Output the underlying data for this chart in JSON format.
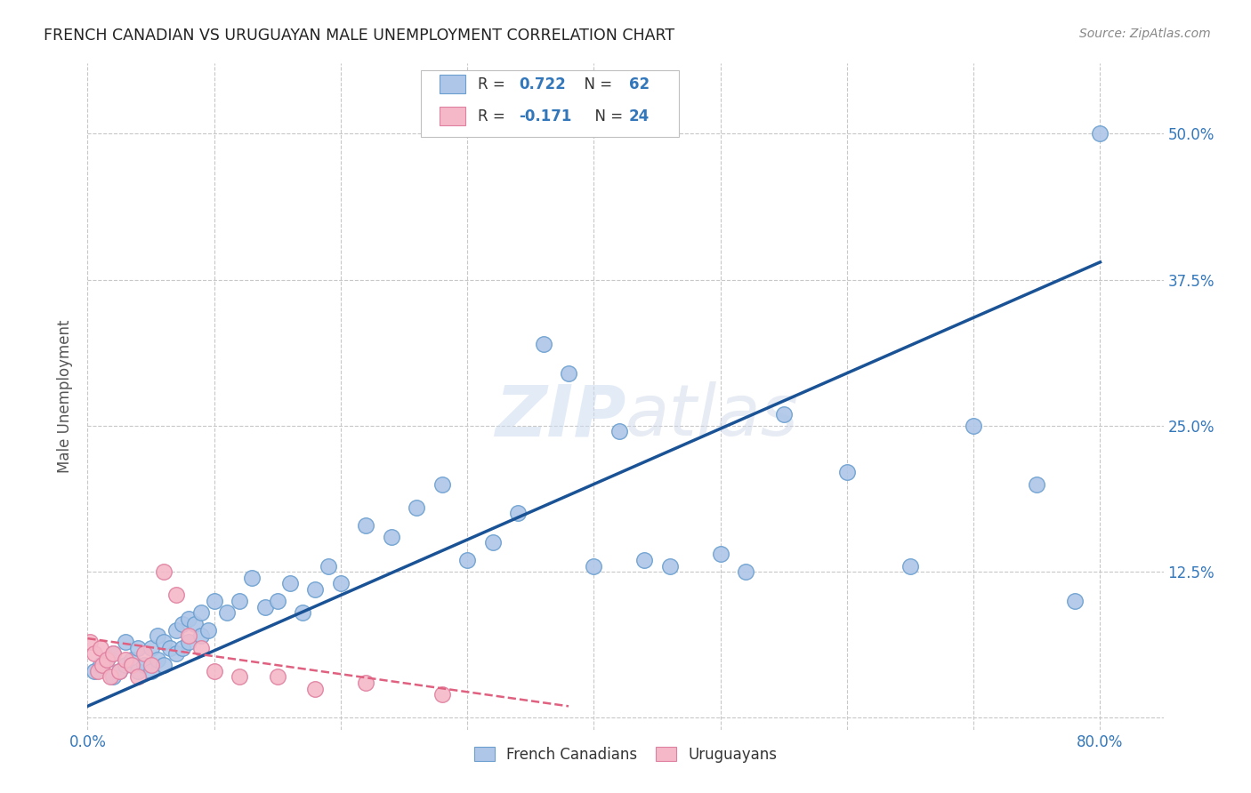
{
  "title": "FRENCH CANADIAN VS URUGUAYAN MALE UNEMPLOYMENT CORRELATION CHART",
  "source": "Source: ZipAtlas.com",
  "ylabel": "Male Unemployment",
  "xlim": [
    0.0,
    0.85
  ],
  "ylim": [
    -0.01,
    0.56
  ],
  "ytick_positions": [
    0.0,
    0.125,
    0.25,
    0.375,
    0.5
  ],
  "ytick_labels": [
    "",
    "12.5%",
    "25.0%",
    "37.5%",
    "50.0%"
  ],
  "blue_color": "#aec6e8",
  "pink_color": "#f5b8c8",
  "blue_edge_color": "#6a9fd0",
  "pink_edge_color": "#e080a0",
  "blue_line_color": "#1a5296",
  "pink_line_color": "#e06080",
  "grid_color": "#c8c8c8",
  "blue_x": [
    0.005,
    0.01,
    0.015,
    0.02,
    0.02,
    0.025,
    0.03,
    0.03,
    0.035,
    0.04,
    0.04,
    0.045,
    0.05,
    0.05,
    0.055,
    0.055,
    0.06,
    0.06,
    0.065,
    0.07,
    0.07,
    0.075,
    0.075,
    0.08,
    0.08,
    0.085,
    0.09,
    0.09,
    0.095,
    0.1,
    0.11,
    0.12,
    0.13,
    0.14,
    0.15,
    0.16,
    0.17,
    0.18,
    0.19,
    0.2,
    0.22,
    0.24,
    0.26,
    0.28,
    0.3,
    0.32,
    0.34,
    0.36,
    0.38,
    0.4,
    0.42,
    0.44,
    0.46,
    0.5,
    0.52,
    0.55,
    0.6,
    0.65,
    0.7,
    0.75,
    0.78,
    0.8
  ],
  "blue_y": [
    0.04,
    0.045,
    0.05,
    0.035,
    0.055,
    0.04,
    0.045,
    0.065,
    0.05,
    0.04,
    0.06,
    0.045,
    0.04,
    0.06,
    0.05,
    0.07,
    0.045,
    0.065,
    0.06,
    0.055,
    0.075,
    0.06,
    0.08,
    0.065,
    0.085,
    0.08,
    0.07,
    0.09,
    0.075,
    0.1,
    0.09,
    0.1,
    0.12,
    0.095,
    0.1,
    0.115,
    0.09,
    0.11,
    0.13,
    0.115,
    0.165,
    0.155,
    0.18,
    0.2,
    0.135,
    0.15,
    0.175,
    0.32,
    0.295,
    0.13,
    0.245,
    0.135,
    0.13,
    0.14,
    0.125,
    0.26,
    0.21,
    0.13,
    0.25,
    0.2,
    0.1,
    0.5
  ],
  "pink_x": [
    0.002,
    0.005,
    0.008,
    0.01,
    0.012,
    0.015,
    0.018,
    0.02,
    0.025,
    0.03,
    0.035,
    0.04,
    0.045,
    0.05,
    0.06,
    0.07,
    0.08,
    0.09,
    0.1,
    0.12,
    0.15,
    0.18,
    0.22,
    0.28
  ],
  "pink_y": [
    0.065,
    0.055,
    0.04,
    0.06,
    0.045,
    0.05,
    0.035,
    0.055,
    0.04,
    0.05,
    0.045,
    0.035,
    0.055,
    0.045,
    0.125,
    0.105,
    0.07,
    0.06,
    0.04,
    0.035,
    0.035,
    0.025,
    0.03,
    0.02
  ],
  "blue_trend_x": [
    0.0,
    0.8
  ],
  "blue_trend_y": [
    0.01,
    0.39
  ],
  "pink_trend_x": [
    0.0,
    0.38
  ],
  "pink_trend_y": [
    0.068,
    0.01
  ]
}
